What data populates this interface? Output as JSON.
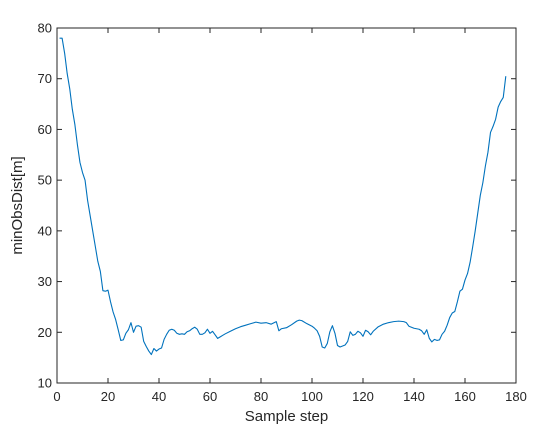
{
  "chart_data": {
    "type": "line",
    "xlabel": "Sample step",
    "ylabel": "minObsDist[m]",
    "xlim": [
      0,
      180
    ],
    "ylim": [
      10,
      80
    ],
    "xticks": [
      0,
      20,
      40,
      60,
      80,
      100,
      120,
      140,
      160,
      180
    ],
    "yticks": [
      10,
      20,
      30,
      40,
      50,
      60,
      70,
      80
    ],
    "grid": false,
    "box": true,
    "colors": {
      "line": "#0072bd",
      "axes": "#262626",
      "background": "#ffffff"
    },
    "series": [
      {
        "x": [
          1,
          2,
          3,
          4,
          5,
          6,
          7,
          8,
          9,
          10,
          11,
          12,
          13,
          14,
          15,
          16,
          17,
          18,
          19,
          20,
          21,
          22,
          23,
          24,
          25,
          26,
          27,
          28,
          29,
          30,
          31,
          32,
          33,
          34,
          35,
          36,
          37,
          38,
          39,
          40,
          41,
          42,
          43,
          44,
          45,
          46,
          47,
          48,
          49,
          50,
          51,
          52,
          53,
          54,
          55,
          56,
          57,
          58,
          59,
          60,
          61,
          62,
          63,
          64,
          65,
          66,
          68,
          70,
          72,
          74,
          76,
          78,
          80,
          82,
          84,
          86,
          87,
          88,
          90,
          92,
          94,
          95,
          96,
          98,
          100,
          101,
          102,
          103,
          104,
          105,
          106,
          107,
          108,
          109,
          110,
          111,
          112,
          113,
          114,
          115,
          116,
          117,
          118,
          119,
          120,
          121,
          122,
          123,
          124,
          126,
          128,
          130,
          132,
          134,
          136,
          137,
          138,
          140,
          142,
          143,
          144,
          145,
          146,
          147,
          148,
          149,
          150,
          151,
          152,
          153,
          154,
          155,
          156,
          157,
          158,
          159,
          160,
          161,
          162,
          163,
          164,
          165,
          166,
          167,
          168,
          169,
          170,
          171,
          172,
          173,
          174,
          175,
          176
        ],
        "y": [
          78,
          78,
          75,
          71,
          68,
          64,
          61,
          57,
          53.5,
          51.5,
          50,
          46,
          43,
          40,
          37,
          34,
          32,
          28.2,
          28.1,
          28.3,
          26,
          24,
          22.5,
          20.5,
          18.4,
          18.5,
          19.8,
          20.5,
          21.9,
          20,
          21.2,
          21.3,
          21,
          18.2,
          17.2,
          16.3,
          15.6,
          16.8,
          16.3,
          16.7,
          16.9,
          18.6,
          19.6,
          20.4,
          20.6,
          20.4,
          19.8,
          19.6,
          19.7,
          19.6,
          20.1,
          20.3,
          20.7,
          21,
          20.6,
          19.6,
          19.6,
          19.9,
          20.6,
          19.8,
          20.2,
          19.5,
          18.8,
          19.1,
          19.4,
          19.7,
          20.2,
          20.7,
          21.1,
          21.4,
          21.7,
          22,
          21.8,
          21.9,
          21.6,
          22.1,
          20.3,
          20.7,
          20.9,
          21.5,
          22.2,
          22.4,
          22.3,
          21.7,
          21.2,
          20.8,
          20.3,
          19.2,
          17.1,
          16.9,
          17.8,
          20.1,
          21.3,
          19.8,
          17.4,
          17.1,
          17.3,
          17.5,
          18.2,
          20.1,
          19.4,
          19.6,
          20.2,
          19.9,
          19.2,
          20.4,
          20.1,
          19.5,
          20.2,
          21.1,
          21.6,
          21.9,
          22.1,
          22.2,
          22.1,
          21.9,
          21.2,
          20.8,
          20.6,
          20.3,
          19.6,
          20.5,
          18.8,
          18.1,
          18.6,
          18.4,
          18.5,
          19.6,
          20.2,
          21.4,
          22.9,
          23.8,
          24.1,
          26,
          28.1,
          28.5,
          30.3,
          31.6,
          33.8,
          36.8,
          40,
          43.5,
          47,
          49.5,
          52.8,
          55.5,
          59.4,
          60.6,
          62,
          64.4,
          65.5,
          66.3,
          70.5
        ]
      }
    ]
  }
}
